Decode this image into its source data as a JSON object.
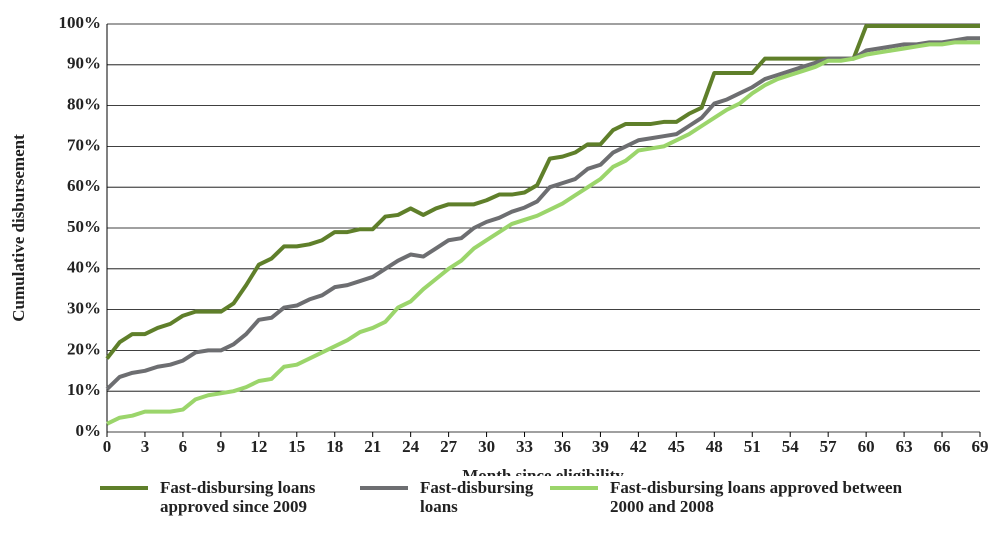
{
  "chart_data": {
    "type": "line",
    "y_label": "Cumulative disbursement",
    "x_label": "Month since eligibility",
    "x": [
      0,
      1,
      2,
      3,
      4,
      5,
      6,
      7,
      8,
      9,
      10,
      11,
      12,
      13,
      14,
      15,
      16,
      17,
      18,
      19,
      20,
      21,
      22,
      23,
      24,
      25,
      26,
      27,
      28,
      29,
      30,
      31,
      32,
      33,
      34,
      35,
      36,
      37,
      38,
      39,
      40,
      41,
      42,
      43,
      44,
      45,
      46,
      47,
      48,
      49,
      50,
      51,
      52,
      53,
      54,
      55,
      56,
      57,
      58,
      59,
      60,
      61,
      62,
      63,
      64,
      65,
      66,
      67,
      68,
      69
    ],
    "xlim": [
      0,
      69
    ],
    "xticks": [
      0,
      3,
      6,
      9,
      12,
      15,
      18,
      21,
      24,
      27,
      30,
      33,
      36,
      39,
      42,
      45,
      48,
      51,
      54,
      57,
      60,
      63,
      66,
      69
    ],
    "ylim": [
      0,
      100
    ],
    "yticks": [
      {
        "value": 0,
        "label": "0%"
      },
      {
        "value": 10,
        "label": "10%"
      },
      {
        "value": 20,
        "label": "20%"
      },
      {
        "value": 30,
        "label": "30%"
      },
      {
        "value": 40,
        "label": "40%"
      },
      {
        "value": 50,
        "label": "50%"
      },
      {
        "value": 60,
        "label": "60%"
      },
      {
        "value": 70,
        "label": "70%"
      },
      {
        "value": 80,
        "label": "80%"
      },
      {
        "value": 90,
        "label": "90%"
      },
      {
        "value": 100,
        "label": "100%"
      }
    ],
    "grid": true,
    "legend": "bottom",
    "series": [
      {
        "name": "Fast-disbursing loans approved since 2009",
        "color": "#5f7f2a",
        "values": [
          18,
          22,
          24,
          24,
          25.5,
          26.5,
          28.5,
          29.5,
          29.5,
          29.5,
          31.5,
          36,
          41,
          42.5,
          45.5,
          45.5,
          46,
          47,
          49,
          49,
          49.7,
          49.7,
          52.8,
          53.2,
          54.8,
          53.2,
          54.8,
          55.8,
          55.8,
          55.8,
          56.8,
          58.2,
          58.2,
          58.7,
          60.5,
          67,
          67.5,
          68.5,
          70.5,
          70.5,
          74,
          75.5,
          75.5,
          75.5,
          76,
          76,
          78,
          79.5,
          88,
          88,
          88,
          88,
          91.5,
          91.5,
          91.5,
          91.5,
          91.5,
          91.5,
          91.5,
          91.5,
          99.5,
          99.5,
          99.5,
          99.5,
          99.5,
          99.5,
          99.5,
          99.5,
          99.5,
          99.5
        ]
      },
      {
        "name": "Fast-disbursing loans",
        "color": "#6d6e71",
        "values": [
          10.5,
          13.5,
          14.5,
          15,
          16,
          16.5,
          17.5,
          19.5,
          20,
          20,
          21.5,
          24,
          27.5,
          28,
          30.5,
          31,
          32.5,
          33.5,
          35.5,
          36,
          37,
          38,
          40,
          42,
          43.5,
          43,
          45,
          47,
          47.5,
          50,
          51.5,
          52.5,
          54,
          55,
          56.5,
          60,
          61,
          62,
          64.5,
          65.5,
          68.5,
          70,
          71.5,
          72,
          72.5,
          73,
          75,
          77,
          80.5,
          81.5,
          83,
          84.5,
          86.5,
          87.5,
          88.5,
          89.5,
          90.5,
          91.5,
          91.5,
          91.5,
          93.5,
          94,
          94.5,
          95,
          95,
          95.5,
          95.5,
          96,
          96.5,
          96.5
        ]
      },
      {
        "name": "Fast-disbursing loans approved between 2000 and 2008",
        "color": "#9bd56b",
        "values": [
          2,
          3.5,
          4,
          5,
          5,
          5,
          5.5,
          8,
          9,
          9.5,
          10,
          11,
          12.5,
          13,
          16,
          16.5,
          18,
          19.5,
          21,
          22.5,
          24.5,
          25.5,
          27,
          30.5,
          32,
          35,
          37.5,
          40,
          42,
          45,
          47,
          49,
          51,
          52,
          53,
          54.5,
          56,
          58,
          60,
          62,
          65,
          66.5,
          69,
          69.5,
          70,
          71.5,
          73,
          75,
          77,
          79,
          80.5,
          83,
          85,
          86.5,
          87.5,
          88.5,
          89.5,
          91,
          91,
          91.5,
          92.5,
          93,
          93.5,
          94,
          94.5,
          95,
          95,
          95.5,
          95.5,
          95.5
        ]
      }
    ]
  }
}
